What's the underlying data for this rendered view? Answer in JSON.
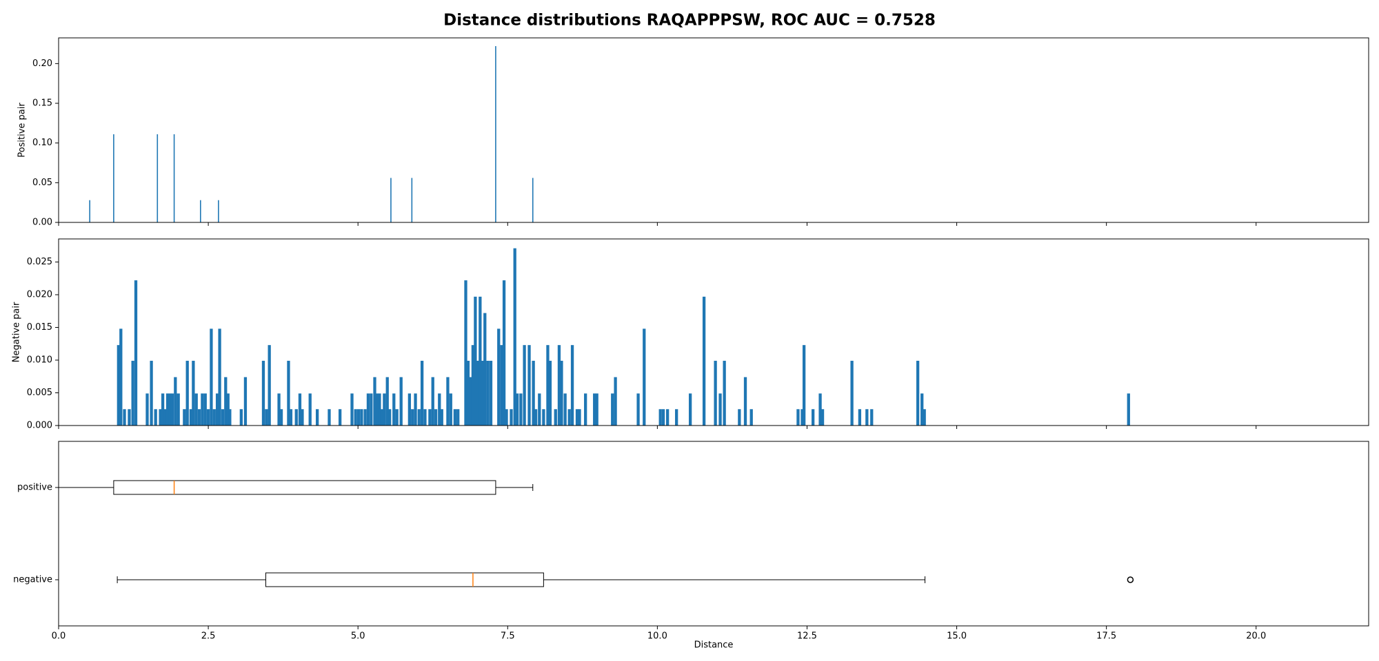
{
  "title": "Distance distributions RAQAPPPSW, ROC AUC = 0.7528",
  "chart_data": [
    {
      "type": "histogram",
      "ylabel": "Positive pair",
      "color": "#1f77b4",
      "x": [
        0.52,
        0.92,
        1.65,
        1.93,
        2.37,
        2.67,
        5.55,
        5.9,
        7.3,
        7.92
      ],
      "values": [
        0.028,
        0.111,
        0.111,
        0.111,
        0.028,
        0.028,
        0.056,
        0.056,
        0.222,
        0.056
      ],
      "ylim": [
        0,
        0.2324
      ],
      "yticks": [
        {
          "value": 0,
          "label": "0.00"
        },
        {
          "value": 0.05,
          "label": "0.05"
        },
        {
          "value": 0.1,
          "label": "0.10"
        },
        {
          "value": 0.15,
          "label": "0.15"
        },
        {
          "value": 0.2,
          "label": "0.20"
        }
      ]
    },
    {
      "type": "histogram",
      "ylabel": "Negative pair",
      "color": "#1f77b4",
      "x": [
        1.0,
        1.04,
        1.1,
        1.18,
        1.24,
        1.29,
        1.48,
        1.55,
        1.62,
        1.7,
        1.74,
        1.78,
        1.82,
        1.86,
        1.9,
        1.95,
        2.0,
        2.1,
        2.15,
        2.21,
        2.25,
        2.3,
        2.35,
        2.4,
        2.45,
        2.5,
        2.55,
        2.6,
        2.65,
        2.69,
        2.74,
        2.79,
        2.83,
        2.86,
        3.05,
        3.12,
        3.42,
        3.47,
        3.52,
        3.68,
        3.72,
        3.84,
        3.88,
        3.97,
        4.03,
        4.07,
        4.2,
        4.32,
        4.52,
        4.7,
        4.9,
        4.96,
        5.01,
        5.06,
        5.12,
        5.17,
        5.22,
        5.28,
        5.32,
        5.36,
        5.4,
        5.44,
        5.49,
        5.53,
        5.6,
        5.65,
        5.72,
        5.86,
        5.91,
        5.96,
        6.02,
        6.07,
        6.12,
        6.2,
        6.25,
        6.3,
        6.36,
        6.4,
        6.5,
        6.55,
        6.62,
        6.67,
        6.8,
        6.84,
        6.88,
        6.92,
        6.96,
        7.0,
        7.04,
        7.08,
        7.12,
        7.17,
        7.22,
        7.35,
        7.4,
        7.44,
        7.48,
        7.56,
        7.62,
        7.66,
        7.72,
        7.78,
        7.86,
        7.93,
        7.97,
        8.03,
        8.1,
        8.17,
        8.21,
        8.3,
        8.36,
        8.4,
        8.46,
        8.53,
        8.58,
        8.66,
        8.7,
        8.8,
        8.95,
        8.99,
        9.25,
        9.3,
        9.68,
        9.78,
        10.05,
        10.1,
        10.17,
        10.32,
        10.55,
        10.78,
        10.97,
        11.05,
        11.12,
        11.37,
        11.47,
        11.57,
        12.35,
        12.42,
        12.45,
        12.6,
        12.72,
        12.76,
        13.25,
        13.38,
        13.5,
        13.58,
        14.35,
        14.42,
        14.46,
        17.87
      ],
      "values": [
        0.0123,
        0.0148,
        0.0025,
        0.0025,
        0.0099,
        0.0222,
        0.0049,
        0.0099,
        0.0025,
        0.0025,
        0.0049,
        0.0025,
        0.0049,
        0.0049,
        0.0049,
        0.0074,
        0.0049,
        0.0025,
        0.0099,
        0.0025,
        0.0099,
        0.0049,
        0.0025,
        0.0049,
        0.0049,
        0.0025,
        0.0148,
        0.0025,
        0.0049,
        0.0148,
        0.0025,
        0.0074,
        0.0049,
        0.0025,
        0.0025,
        0.0074,
        0.0099,
        0.0025,
        0.0123,
        0.0049,
        0.0025,
        0.0099,
        0.0025,
        0.0025,
        0.0049,
        0.0025,
        0.0049,
        0.0025,
        0.0025,
        0.0025,
        0.0049,
        0.0025,
        0.0025,
        0.0025,
        0.0025,
        0.0049,
        0.0049,
        0.0074,
        0.0049,
        0.0049,
        0.0025,
        0.0049,
        0.0074,
        0.0025,
        0.0049,
        0.0025,
        0.0074,
        0.0049,
        0.0025,
        0.0049,
        0.0025,
        0.0099,
        0.0025,
        0.0025,
        0.0074,
        0.0025,
        0.0049,
        0.0025,
        0.0074,
        0.0049,
        0.0025,
        0.0025,
        0.0222,
        0.0099,
        0.0074,
        0.0123,
        0.0197,
        0.0099,
        0.0197,
        0.0099,
        0.0172,
        0.0099,
        0.0099,
        0.0148,
        0.0123,
        0.0222,
        0.0025,
        0.0025,
        0.0271,
        0.0049,
        0.0049,
        0.0123,
        0.0123,
        0.0099,
        0.0025,
        0.0049,
        0.0025,
        0.0123,
        0.0099,
        0.0025,
        0.0123,
        0.0099,
        0.0049,
        0.0025,
        0.0123,
        0.0025,
        0.0025,
        0.0049,
        0.0049,
        0.0049,
        0.0049,
        0.0074,
        0.0049,
        0.0148,
        0.0025,
        0.0025,
        0.0025,
        0.0025,
        0.0049,
        0.0197,
        0.0099,
        0.0049,
        0.0099,
        0.0025,
        0.0074,
        0.0025,
        0.0025,
        0.0025,
        0.0123,
        0.0025,
        0.0049,
        0.0025,
        0.0099,
        0.0025,
        0.0025,
        0.0025,
        0.0099,
        0.0049,
        0.0025,
        0.0049
      ],
      "ylim": [
        0,
        0.02853
      ],
      "yticks": [
        {
          "value": 0,
          "label": "0.000"
        },
        {
          "value": 0.005,
          "label": "0.005"
        },
        {
          "value": 0.01,
          "label": "0.010"
        },
        {
          "value": 0.015,
          "label": "0.015"
        },
        {
          "value": 0.02,
          "label": "0.020"
        },
        {
          "value": 0.025,
          "label": "0.025"
        }
      ]
    },
    {
      "type": "box",
      "xlabel": "Distance",
      "box_color": "#000000",
      "median_color": "#ff7f0e",
      "categories": [
        "positive",
        "negative"
      ],
      "boxes": [
        {
          "whislo": 0,
          "q1": 0.92,
          "med": 1.93,
          "q3": 7.3,
          "whishi": 7.92,
          "fliers": []
        },
        {
          "whislo": 0.98,
          "q1": 3.46,
          "med": 6.92,
          "q3": 8.1,
          "whishi": 14.47,
          "fliers": [
            17.9
          ]
        }
      ],
      "xlim": [
        0,
        21.88
      ],
      "xticks": [
        {
          "value": 0,
          "label": "0.0"
        },
        {
          "value": 2.5,
          "label": "2.5"
        },
        {
          "value": 5,
          "label": "5.0"
        },
        {
          "value": 7.5,
          "label": "7.5"
        },
        {
          "value": 10,
          "label": "10.0"
        },
        {
          "value": 12.5,
          "label": "12.5"
        },
        {
          "value": 15,
          "label": "15.0"
        },
        {
          "value": 17.5,
          "label": "17.5"
        },
        {
          "value": 20,
          "label": "20.0"
        }
      ]
    }
  ]
}
